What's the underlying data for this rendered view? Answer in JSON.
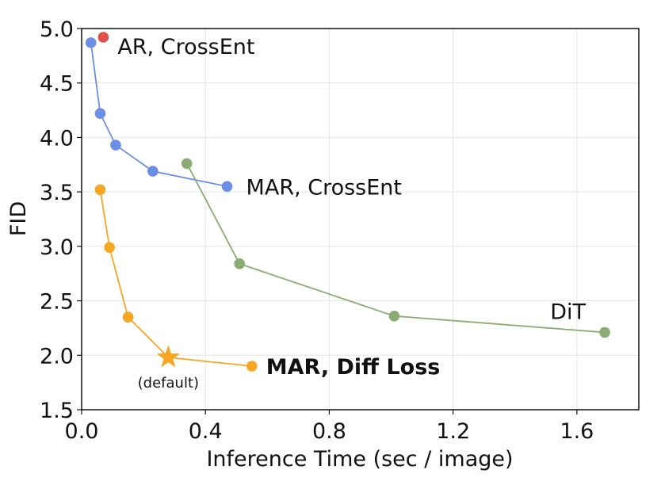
{
  "chart_data": {
    "type": "scatter",
    "xlabel": "Inference Time (sec / image)",
    "ylabel": "FID",
    "xlim": [
      0.0,
      1.8
    ],
    "ylim": [
      1.5,
      5.0
    ],
    "xticks": [
      0.0,
      0.4,
      0.8,
      1.2,
      1.6
    ],
    "xtick_labels": [
      "0.0",
      "0.4",
      "0.8",
      "1.2",
      "1.6"
    ],
    "yticks": [
      1.5,
      2.0,
      2.5,
      3.0,
      3.5,
      4.0,
      4.5,
      5.0
    ],
    "ytick_labels": [
      "1.5",
      "2.0",
      "2.5",
      "3.0",
      "3.5",
      "4.0",
      "4.5",
      "5.0"
    ],
    "grid": true,
    "series": [
      {
        "name": "AR, CrossEnt",
        "color": "#e0504a",
        "line": false,
        "points": [
          [
            0.07,
            4.92
          ]
        ]
      },
      {
        "name": "MAR, CrossEnt",
        "color": "#6b8fe6",
        "line": true,
        "points": [
          [
            0.03,
            4.87
          ],
          [
            0.06,
            4.22
          ],
          [
            0.11,
            3.93
          ],
          [
            0.23,
            3.69
          ],
          [
            0.47,
            3.55
          ]
        ]
      },
      {
        "name": "DiT",
        "color": "#8aab72",
        "line": true,
        "points": [
          [
            0.34,
            3.76
          ],
          [
            0.51,
            2.84
          ],
          [
            1.01,
            2.36
          ],
          [
            1.69,
            2.21
          ]
        ]
      },
      {
        "name": "MAR, Diff Loss",
        "color": "#f5a623",
        "line": true,
        "bold": true,
        "points": [
          [
            0.06,
            3.52
          ],
          [
            0.09,
            2.99
          ],
          [
            0.15,
            2.35
          ],
          [
            0.28,
            1.98
          ],
          [
            0.55,
            1.9
          ]
        ],
        "star_index": 3
      }
    ],
    "annotations": [
      {
        "text": "(default)",
        "x": 0.28,
        "y": 1.98
      }
    ]
  }
}
